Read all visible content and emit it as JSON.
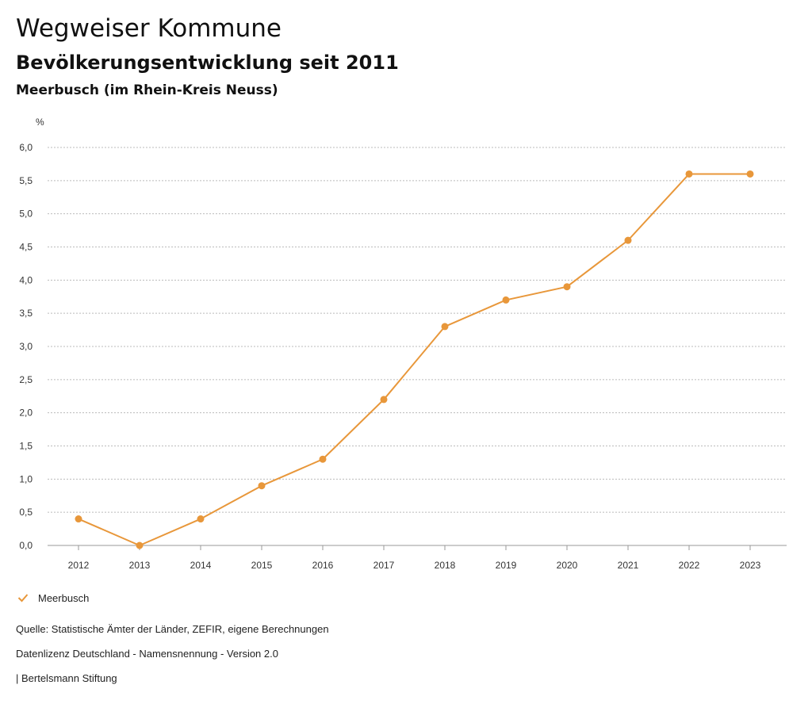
{
  "header": {
    "title": "Wegweiser Kommune",
    "subtitle": "Bevölkerungsentwicklung seit 2011",
    "region": "Meerbusch (im Rhein-Kreis Neuss)"
  },
  "legend": {
    "icon": "checkmark-icon",
    "label": "Meerbusch"
  },
  "footer": {
    "source": "Quelle: Statistische Ämter der Länder, ZEFIR, eigene Berechnungen",
    "license": "Datenlizenz Deutschland - Namensnennung - Version 2.0",
    "publisher": "| Bertelsmann Stiftung"
  },
  "colors": {
    "series": "#e8973a",
    "grid": "#bbbbbb",
    "axis": "#999999"
  },
  "chart_data": {
    "type": "line",
    "title": "",
    "xlabel": "",
    "ylabel": "%",
    "x": [
      "2012",
      "2013",
      "2014",
      "2015",
      "2016",
      "2017",
      "2018",
      "2019",
      "2020",
      "2021",
      "2022",
      "2023"
    ],
    "series": [
      {
        "name": "Meerbusch",
        "values": [
          0.4,
          0.0,
          0.4,
          0.9,
          1.3,
          2.2,
          3.3,
          3.7,
          3.9,
          4.6,
          5.6,
          5.6
        ]
      }
    ],
    "ylim": [
      0,
      6
    ],
    "yticks": [
      "0,0",
      "0,5",
      "1,0",
      "1,5",
      "2,0",
      "2,5",
      "3,0",
      "3,5",
      "4,0",
      "4,5",
      "5,0",
      "5,5",
      "6,0"
    ],
    "grid": true,
    "legend_position": "bottom-left"
  }
}
